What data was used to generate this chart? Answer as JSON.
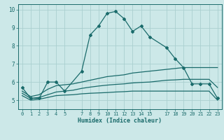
{
  "xlabel": "Humidex (Indice chaleur)",
  "xlim": [
    -0.5,
    23.5
  ],
  "ylim": [
    4.5,
    10.3
  ],
  "xticks": [
    0,
    1,
    2,
    3,
    4,
    5,
    7,
    8,
    9,
    10,
    11,
    12,
    13,
    14,
    15,
    17,
    18,
    19,
    20,
    21,
    22,
    23
  ],
  "yticks": [
    5,
    6,
    7,
    8,
    9,
    10
  ],
  "bg_color": "#cce8e8",
  "line_color": "#1a6b6b",
  "grid_color": "#aacfcf",
  "main_line": {
    "x": [
      0,
      1,
      2,
      3,
      4,
      5,
      7,
      8,
      9,
      10,
      11,
      12,
      13,
      14,
      15,
      17,
      18,
      19,
      20,
      21,
      22,
      23
    ],
    "y": [
      5.7,
      5.1,
      5.1,
      6.0,
      6.0,
      5.5,
      6.6,
      8.6,
      9.1,
      9.8,
      9.9,
      9.5,
      8.8,
      9.1,
      8.5,
      7.9,
      7.3,
      6.8,
      5.9,
      5.9,
      5.9,
      5.1
    ]
  },
  "line2": {
    "x": [
      0,
      1,
      2,
      3,
      4,
      5,
      6,
      7,
      8,
      9,
      10,
      11,
      12,
      13,
      14,
      15,
      16,
      17,
      18,
      19,
      20,
      21,
      22,
      23
    ],
    "y": [
      5.5,
      5.2,
      5.3,
      5.6,
      5.8,
      5.85,
      5.9,
      6.0,
      6.1,
      6.2,
      6.3,
      6.35,
      6.4,
      6.5,
      6.55,
      6.6,
      6.65,
      6.7,
      6.75,
      6.8,
      6.8,
      6.8,
      6.8,
      6.8
    ]
  },
  "line3": {
    "x": [
      0,
      1,
      2,
      3,
      4,
      5,
      6,
      7,
      8,
      9,
      10,
      11,
      12,
      13,
      14,
      15,
      16,
      17,
      18,
      19,
      20,
      21,
      22,
      23
    ],
    "y": [
      5.25,
      5.0,
      5.05,
      5.15,
      5.25,
      5.28,
      5.3,
      5.35,
      5.38,
      5.4,
      5.42,
      5.45,
      5.47,
      5.5,
      5.5,
      5.5,
      5.5,
      5.5,
      5.5,
      5.5,
      5.5,
      5.5,
      5.5,
      5.0
    ]
  },
  "line4": {
    "x": [
      0,
      1,
      2,
      3,
      4,
      5,
      6,
      7,
      8,
      9,
      10,
      11,
      12,
      13,
      14,
      15,
      16,
      17,
      18,
      19,
      20,
      21,
      22,
      23
    ],
    "y": [
      5.38,
      5.1,
      5.15,
      5.3,
      5.45,
      5.5,
      5.55,
      5.65,
      5.72,
      5.78,
      5.83,
      5.87,
      5.9,
      5.95,
      5.98,
      6.0,
      6.05,
      6.1,
      6.12,
      6.15,
      6.15,
      6.15,
      6.15,
      5.7
    ]
  }
}
